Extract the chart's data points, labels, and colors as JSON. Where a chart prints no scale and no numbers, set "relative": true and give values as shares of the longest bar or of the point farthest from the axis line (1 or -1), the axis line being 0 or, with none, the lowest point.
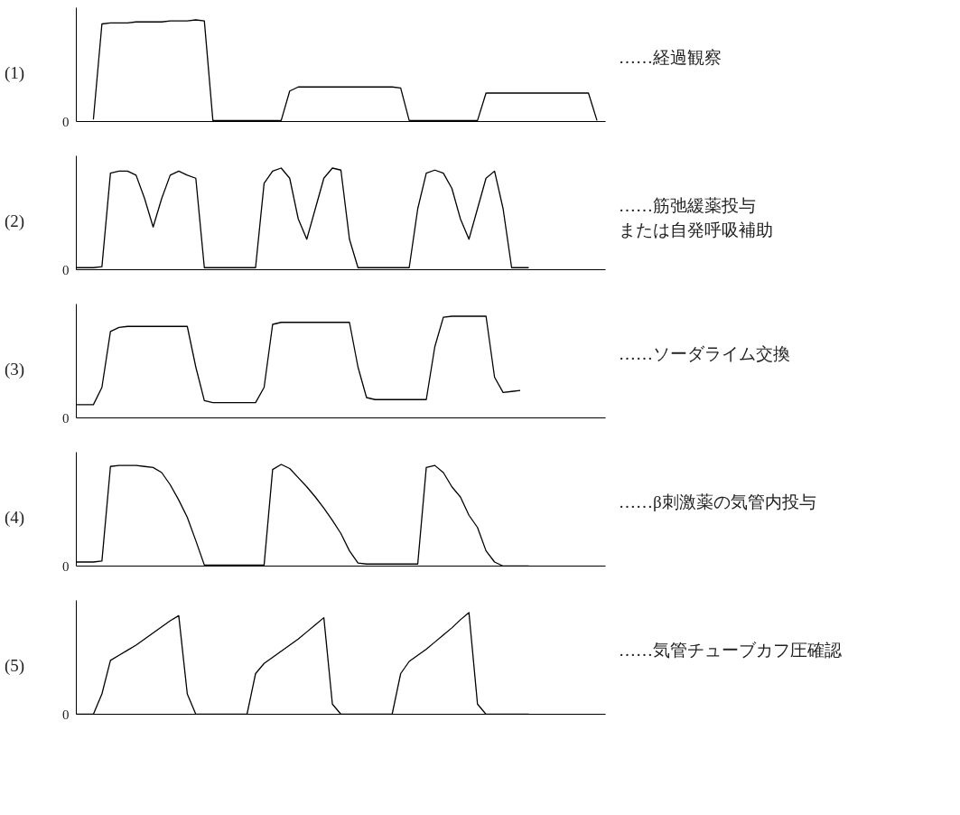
{
  "chart_data": [
    {
      "type": "line",
      "title": "(1)",
      "relative": true,
      "categories": [
        null,
        null,
        null,
        null,
        null,
        null,
        null,
        null,
        null,
        null,
        null,
        null,
        null,
        null,
        null,
        null,
        null,
        null,
        null,
        null,
        null,
        null,
        null,
        null,
        null,
        null,
        null,
        null,
        null,
        null,
        null,
        null,
        null,
        null,
        null,
        null,
        null,
        null,
        null,
        null,
        null,
        null,
        null,
        null,
        null,
        null,
        null,
        null,
        null,
        null,
        null,
        null,
        null,
        null,
        null,
        null,
        null,
        null,
        null,
        null,
        null,
        null
      ],
      "series": [
        {
          "color": "#000000",
          "values": [
            null,
            null,
            0.02,
            0.96,
            0.97,
            0.97,
            0.97,
            0.98,
            0.98,
            0.98,
            0.98,
            0.99,
            0.99,
            0.99,
            1.0,
            0.99,
            0.01,
            0.01,
            0.01,
            0.01,
            0.01,
            0.01,
            0.01,
            0.01,
            0.01,
            0.3,
            0.34,
            0.34,
            0.34,
            0.34,
            0.34,
            0.34,
            0.34,
            0.34,
            0.34,
            0.34,
            0.34,
            0.34,
            0.33,
            0.01,
            0.01,
            0.01,
            0.01,
            0.01,
            0.01,
            0.01,
            0.01,
            0.01,
            0.28,
            0.28,
            0.28,
            0.28,
            0.28,
            0.28,
            0.28,
            0.28,
            0.28,
            0.28,
            0.28,
            0.28,
            0.28,
            0.01
          ]
        }
      ],
      "annotations": [
        "0",
        "……経過観察"
      ]
    },
    {
      "type": "line",
      "title": "(2)",
      "relative": true,
      "categories": [
        null,
        null,
        null,
        null,
        null,
        null,
        null,
        null,
        null,
        null,
        null,
        null,
        null,
        null,
        null,
        null,
        null,
        null,
        null,
        null,
        null,
        null,
        null,
        null,
        null,
        null,
        null,
        null,
        null,
        null,
        null,
        null,
        null,
        null,
        null,
        null,
        null,
        null,
        null,
        null,
        null,
        null,
        null,
        null,
        null,
        null,
        null,
        null,
        null,
        null,
        null,
        null,
        null,
        null
      ],
      "series": [
        {
          "color": "#000000",
          "values": [
            0.02,
            0.02,
            0.02,
            0.03,
            0.95,
            0.97,
            0.97,
            0.93,
            0.7,
            0.42,
            0.7,
            0.93,
            0.97,
            0.93,
            0.9,
            0.02,
            0.02,
            0.02,
            0.02,
            0.02,
            0.02,
            0.02,
            0.85,
            0.97,
            1.0,
            0.9,
            0.5,
            0.3,
            0.6,
            0.9,
            1.0,
            0.98,
            0.3,
            0.02,
            0.02,
            0.02,
            0.02,
            0.02,
            0.02,
            0.02,
            0.6,
            0.95,
            0.98,
            0.95,
            0.8,
            0.5,
            0.3,
            0.6,
            0.9,
            0.97,
            0.6,
            0.02,
            0.02,
            0.02
          ]
        }
      ],
      "annotations": [
        "0",
        "……筋弛緩薬投与",
        "または自発呼吸補助"
      ]
    },
    {
      "type": "line",
      "title": "(3)",
      "relative": true,
      "categories": [
        null,
        null,
        null,
        null,
        null,
        null,
        null,
        null,
        null,
        null,
        null,
        null,
        null,
        null,
        null,
        null,
        null,
        null,
        null,
        null,
        null,
        null,
        null,
        null,
        null,
        null,
        null,
        null,
        null,
        null,
        null,
        null,
        null,
        null,
        null,
        null,
        null,
        null,
        null,
        null,
        null,
        null,
        null,
        null,
        null,
        null,
        null,
        null,
        null,
        null,
        null,
        null,
        null
      ],
      "series": [
        {
          "color": "#000000",
          "values": [
            0.13,
            0.13,
            0.13,
            0.3,
            0.85,
            0.89,
            0.9,
            0.9,
            0.9,
            0.9,
            0.9,
            0.9,
            0.9,
            0.9,
            0.5,
            0.17,
            0.15,
            0.15,
            0.15,
            0.15,
            0.15,
            0.15,
            0.3,
            0.92,
            0.94,
            0.94,
            0.94,
            0.94,
            0.94,
            0.94,
            0.94,
            0.94,
            0.94,
            0.5,
            0.2,
            0.18,
            0.18,
            0.18,
            0.18,
            0.18,
            0.18,
            0.18,
            0.7,
            0.99,
            1.0,
            1.0,
            1.0,
            1.0,
            1.0,
            0.4,
            0.25,
            0.26,
            0.27
          ]
        }
      ],
      "annotations": [
        "0",
        "……ソーダライム交換"
      ]
    },
    {
      "type": "line",
      "title": "(4)",
      "relative": true,
      "categories": [
        null,
        null,
        null,
        null,
        null,
        null,
        null,
        null,
        null,
        null,
        null,
        null,
        null,
        null,
        null,
        null,
        null,
        null,
        null,
        null,
        null,
        null,
        null,
        null,
        null,
        null,
        null,
        null,
        null,
        null,
        null,
        null,
        null,
        null,
        null,
        null,
        null,
        null,
        null,
        null,
        null,
        null,
        null,
        null,
        null,
        null,
        null,
        null,
        null,
        null,
        null,
        null,
        null,
        null
      ],
      "series": [
        {
          "color": "#000000",
          "values": [
            0.04,
            0.04,
            0.04,
            0.05,
            0.98,
            0.99,
            0.99,
            0.99,
            0.98,
            0.97,
            0.92,
            0.8,
            0.65,
            0.48,
            0.25,
            0.01,
            0.01,
            0.01,
            0.01,
            0.01,
            0.01,
            0.01,
            0.01,
            0.95,
            1.0,
            0.96,
            0.87,
            0.78,
            0.68,
            0.57,
            0.45,
            0.32,
            0.15,
            0.03,
            0.02,
            0.02,
            0.02,
            0.02,
            0.02,
            0.02,
            0.02,
            0.97,
            0.99,
            0.92,
            0.78,
            0.68,
            0.5,
            0.38,
            0.15,
            0.04,
            0.0,
            0.0,
            0.0,
            0.0
          ]
        }
      ],
      "annotations": [
        "0",
        "……β刺激薬の気管内投与"
      ]
    },
    {
      "type": "line",
      "title": "(5)",
      "relative": true,
      "categories": [
        null,
        null,
        null,
        null,
        null,
        null,
        null,
        null,
        null,
        null,
        null,
        null,
        null,
        null,
        null,
        null,
        null,
        null,
        null,
        null,
        null,
        null,
        null,
        null,
        null,
        null,
        null,
        null,
        null,
        null,
        null,
        null,
        null,
        null,
        null,
        null,
        null,
        null,
        null,
        null,
        null,
        null,
        null,
        null,
        null,
        null,
        null,
        null,
        null,
        null,
        null,
        null,
        null,
        null
      ],
      "series": [
        {
          "color": "#000000",
          "values": [
            0.0,
            0.0,
            0.0,
            0.2,
            0.53,
            0.58,
            0.63,
            0.68,
            0.74,
            0.8,
            0.86,
            0.92,
            0.97,
            0.2,
            0.0,
            0.0,
            0.0,
            0.0,
            0.0,
            0.0,
            0.0,
            0.4,
            0.5,
            0.56,
            0.62,
            0.68,
            0.74,
            0.81,
            0.88,
            0.95,
            0.1,
            0.0,
            0.0,
            0.0,
            0.0,
            0.0,
            0.0,
            0.0,
            0.4,
            0.52,
            0.58,
            0.64,
            0.71,
            0.78,
            0.85,
            0.93,
            1.0,
            0.1,
            0.0,
            0.0,
            0.0,
            0.0,
            0.0,
            0.0
          ]
        }
      ],
      "annotations": [
        "0",
        "……気管チューブカフ圧確認"
      ]
    }
  ]
}
